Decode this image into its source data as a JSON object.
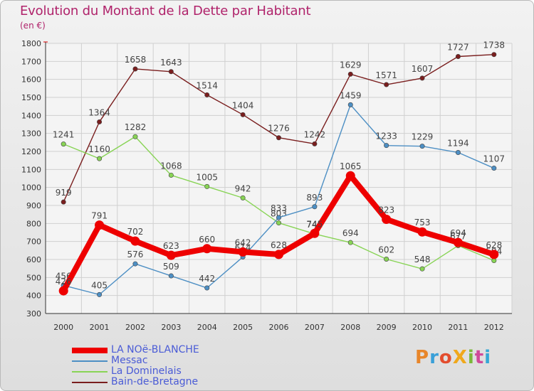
{
  "title": "Evolution du Montant de la Dette par Habitant",
  "unit": "(en €)",
  "logo_text": "ProXiti",
  "chart_data": {
    "type": "line",
    "x": [
      "2000",
      "2001",
      "2002",
      "2003",
      "2004",
      "2005",
      "2006",
      "2007",
      "2008",
      "2009",
      "2010",
      "2011",
      "2012"
    ],
    "ylim": [
      300,
      1800
    ],
    "yticks": [
      300,
      400,
      500,
      600,
      700,
      800,
      900,
      1000,
      1100,
      1200,
      1300,
      1400,
      1500,
      1600,
      1700,
      1800
    ],
    "grid": true,
    "legend_position": "bottom-left",
    "series": [
      {
        "name": "Bain-de-Bretagne",
        "color": "#7a1e1e",
        "values": [
          919,
          1364,
          1658,
          1643,
          1514,
          1404,
          1276,
          1242,
          1629,
          1571,
          1607,
          1727,
          1738
        ]
      },
      {
        "name": "La Dominelais",
        "color": "#88d455",
        "values": [
          1241,
          1160,
          1282,
          1068,
          1005,
          942,
          803,
          742,
          694,
          602,
          548,
          677,
          594
        ]
      },
      {
        "name": "Messac",
        "color": "#4d8fc4",
        "values": [
          456,
          405,
          576,
          509,
          442,
          614,
          833,
          893,
          1459,
          1233,
          1229,
          1194,
          1107
        ]
      },
      {
        "name": "LA NOë-BLANCHE",
        "color": "#ee0000",
        "values": [
          426,
          791,
          702,
          623,
          660,
          642,
          628,
          745,
          1065,
          823,
          753,
          694,
          628
        ]
      }
    ]
  }
}
